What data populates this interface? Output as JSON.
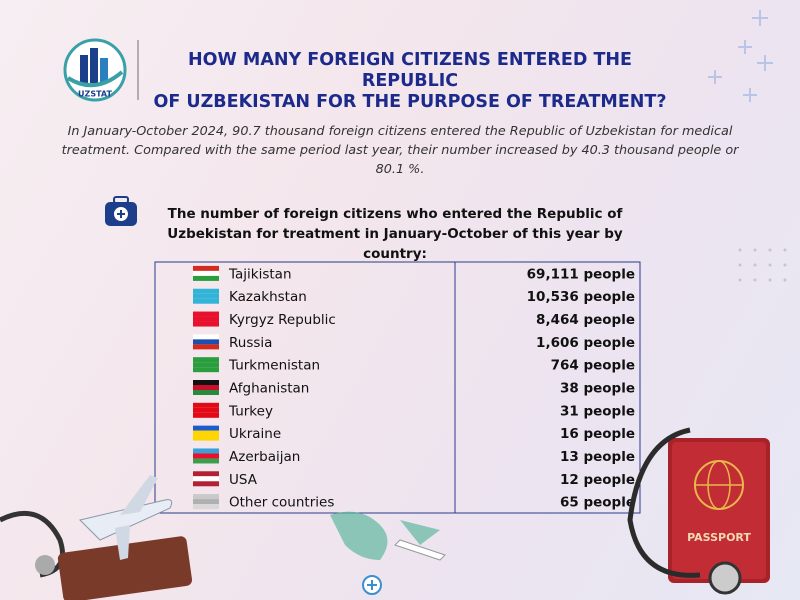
{
  "logo": {
    "text": "UZSTAT"
  },
  "header": {
    "title_lines": [
      "HOW MANY FOREIGN CITIZENS ENTERED THE REPUBLIC",
      "OF UZBEKISTAN FOR THE PURPOSE OF TREATMENT?"
    ]
  },
  "intro": "In January-October 2024, 90.7 thousand foreign citizens entered the Republic of Uzbekistan for medical treatment. Compared with the same period last year, their number increased by 40.3 thousand people or 80.1 %.",
  "subtitle": "The number of foreign citizens who entered the Republic of Uzbekistan for treatment in January-October of this year by country:",
  "table": {
    "rows": [
      [
        "Tajikistan",
        "69,111 people"
      ],
      [
        "Kazakhstan",
        "10,536 people"
      ],
      [
        "Kyrgyz Republic",
        "8,464 people"
      ],
      [
        "Russia",
        "1,606 people"
      ],
      [
        "Turkmenistan",
        "764 people"
      ],
      [
        "Afghanistan",
        "38 people"
      ],
      [
        "Turkey",
        "31 people"
      ],
      [
        "Ukraine",
        "16 people"
      ],
      [
        "Azerbaijan",
        "13 people"
      ],
      [
        "USA",
        "12 people"
      ],
      [
        "Other countries",
        "65 people"
      ]
    ]
  },
  "passport": "PASSPORT"
}
